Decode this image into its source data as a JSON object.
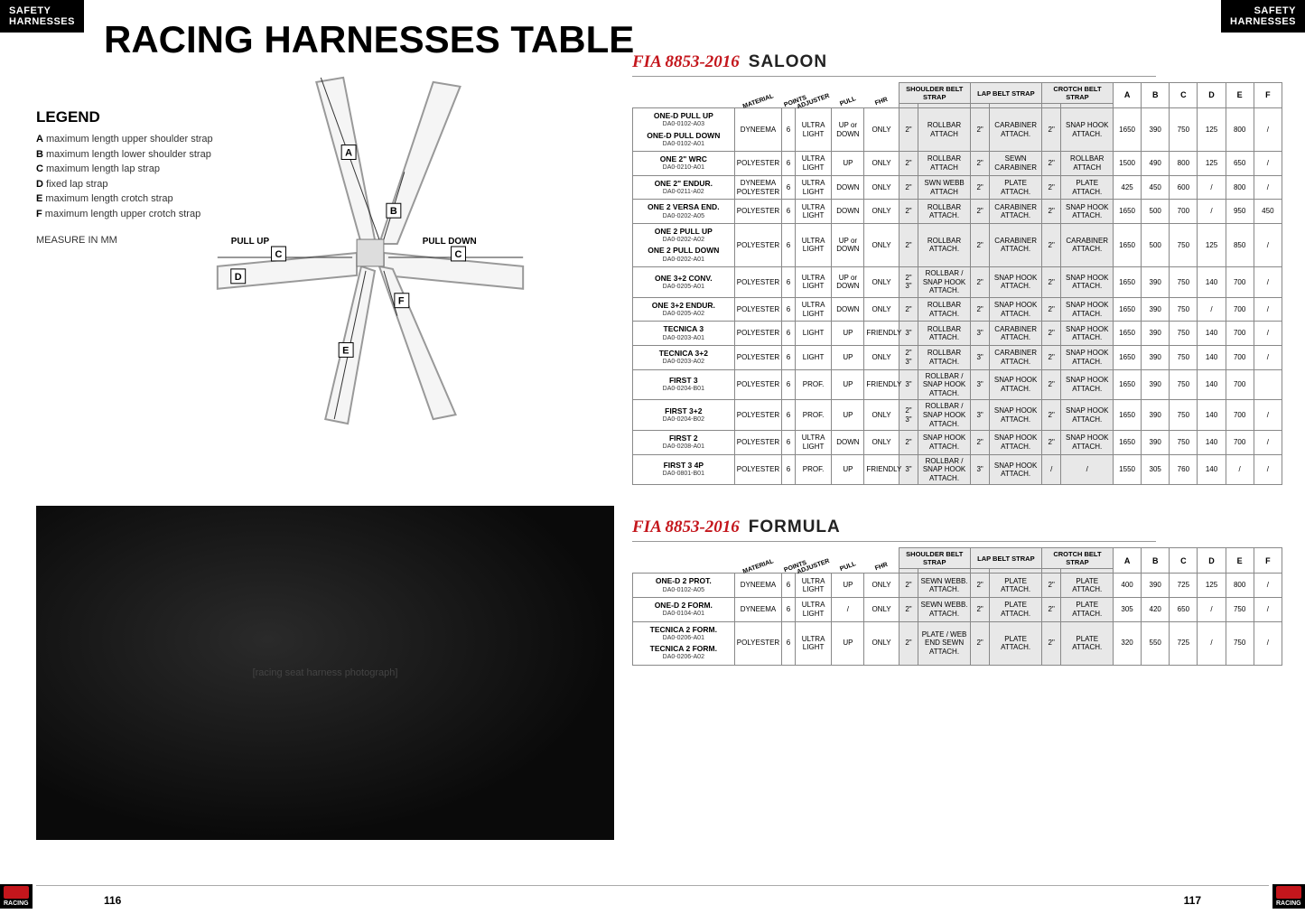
{
  "header_tag": "SAFETY\nHARNESSES",
  "page_title": "RACING HARNESSES TABLE",
  "legend": {
    "title": "LEGEND",
    "items": [
      {
        "l": "A",
        "t": "maximum length upper shoulder strap"
      },
      {
        "l": "B",
        "t": "maximum length lower shoulder strap"
      },
      {
        "l": "C",
        "t": "maximum length lap strap"
      },
      {
        "l": "D",
        "t": "fixed lap strap"
      },
      {
        "l": "E",
        "t": "maximum length crotch strap"
      },
      {
        "l": "F",
        "t": "maximum length upper crotch strap"
      }
    ],
    "note": "MEASURE IN MM"
  },
  "diagram": {
    "pull_up": "PULL UP",
    "pull_down": "PULL DOWN",
    "labels": [
      "A",
      "B",
      "C",
      "D",
      "E",
      "F"
    ]
  },
  "fia_prefix": "FIA 8853-2016",
  "saloon_title": "SALOON",
  "formula_title": "FORMULA",
  "table_headers": {
    "material": "MATERIAL",
    "points": "POINTS",
    "adjuster": "ADJUSTER",
    "pull": "PULL",
    "fhr": "FHR",
    "shoulder": "SHOULDER BELT STRAP",
    "lap": "LAP BELT STRAP",
    "crotch": "CROTCH BELT STRAP",
    "dims": [
      "A",
      "B",
      "C",
      "D",
      "E",
      "F"
    ]
  },
  "saloon_rows": [
    {
      "name": "ONE-D PULL UP",
      "code": "DA0-0102-A03",
      "name2": "ONE-D PULL DOWN",
      "code2": "DA0-0102-A01",
      "mat": "DYNEEMA",
      "pts": "6",
      "adj": "ULTRA LIGHT",
      "pull": "UP or DOWN",
      "fhr": "ONLY",
      "ssz": "2\"",
      "sat": "ROLLBAR ATTACH",
      "lsz": "2\"",
      "lat": "CARABINER ATTACH.",
      "csz": "2\"",
      "cat": "SNAP HOOK ATTACH.",
      "a": "1650",
      "b": "390",
      "c": "750",
      "d": "125",
      "e": "800",
      "f": "/"
    },
    {
      "name": "ONE 2\" WRC",
      "code": "DA0-0210-A01",
      "mat": "POLYESTER",
      "pts": "6",
      "adj": "ULTRA LIGHT",
      "pull": "UP",
      "fhr": "ONLY",
      "ssz": "2\"",
      "sat": "ROLLBAR ATTACH",
      "lsz": "2\"",
      "lat": "SEWN CARABINER",
      "csz": "2\"",
      "cat": "ROLLBAR ATTACH",
      "a": "1500",
      "b": "490",
      "c": "800",
      "d": "125",
      "e": "650",
      "f": "/"
    },
    {
      "name": "ONE 2\" ENDUR.",
      "code": "DA0-0211-A02",
      "mat": "DYNEEMA POLYESTER",
      "pts": "6",
      "adj": "ULTRA LIGHT",
      "pull": "DOWN",
      "fhr": "ONLY",
      "ssz": "2\"",
      "sat": "SWN WEBB ATTACH",
      "lsz": "2\"",
      "lat": "PLATE ATTACH.",
      "csz": "2\"",
      "cat": "PLATE ATTACH.",
      "a": "425",
      "b": "450",
      "c": "600",
      "d": "/",
      "e": "800",
      "f": "/"
    },
    {
      "name": "ONE 2 VERSA END.",
      "code": "DA0-0202-A05",
      "mat": "POLYESTER",
      "pts": "6",
      "adj": "ULTRA LIGHT",
      "pull": "DOWN",
      "fhr": "ONLY",
      "ssz": "2\"",
      "sat": "ROLLBAR ATTACH.",
      "lsz": "2\"",
      "lat": "CARABINER ATTACH.",
      "csz": "2\"",
      "cat": "SNAP HOOK ATTACH.",
      "a": "1650",
      "b": "500",
      "c": "700",
      "d": "/",
      "e": "950",
      "f": "450"
    },
    {
      "name": "ONE 2 PULL UP",
      "code": "DA0-0202-A02",
      "name2": "ONE 2 PULL DOWN",
      "code2": "DA0-0202-A01",
      "mat": "POLYESTER",
      "pts": "6",
      "adj": "ULTRA LIGHT",
      "pull": "UP or DOWN",
      "fhr": "ONLY",
      "ssz": "2\"",
      "sat": "ROLLBAR ATTACH.",
      "lsz": "2\"",
      "lat": "CARABINER ATTACH.",
      "csz": "2\"",
      "cat": "CARABINER ATTACH.",
      "a": "1650",
      "b": "500",
      "c": "750",
      "d": "125",
      "e": "850",
      "f": "/"
    },
    {
      "name": "ONE 3+2 CONV.",
      "code": "DA0-0205-A01",
      "mat": "POLYESTER",
      "pts": "6",
      "adj": "ULTRA LIGHT",
      "pull": "UP or DOWN",
      "fhr": "ONLY",
      "ssz": "2\" 3\"",
      "sat": "ROLLBAR / SNAP HOOK ATTACH.",
      "lsz": "2\"",
      "lat": "SNAP HOOK ATTACH.",
      "csz": "2\"",
      "cat": "SNAP HOOK ATTACH.",
      "a": "1650",
      "b": "390",
      "c": "750",
      "d": "140",
      "e": "700",
      "f": "/"
    },
    {
      "name": "ONE 3+2 ENDUR.",
      "code": "DA0-0205-A02",
      "mat": "POLYESTER",
      "pts": "6",
      "adj": "ULTRA LIGHT",
      "pull": "DOWN",
      "fhr": "ONLY",
      "ssz": "2\"",
      "sat": "ROLLBAR ATTACH.",
      "lsz": "2\"",
      "lat": "SNAP HOOK ATTACH.",
      "csz": "2\"",
      "cat": "SNAP HOOK ATTACH.",
      "a": "1650",
      "b": "390",
      "c": "750",
      "d": "/",
      "e": "700",
      "f": "/"
    },
    {
      "name": "TECNICA 3",
      "code": "DA0-0203-A01",
      "mat": "POLYESTER",
      "pts": "6",
      "adj": "LIGHT",
      "pull": "UP",
      "fhr": "FRIENDLY",
      "ssz": "3\"",
      "sat": "ROLLBAR ATTACH.",
      "lsz": "3\"",
      "lat": "CARABINER ATTACH.",
      "csz": "2\"",
      "cat": "SNAP HOOK ATTACH.",
      "a": "1650",
      "b": "390",
      "c": "750",
      "d": "140",
      "e": "700",
      "f": "/"
    },
    {
      "name": "TECNICA 3+2",
      "code": "DA0-0203-A02",
      "mat": "POLYESTER",
      "pts": "6",
      "adj": "LIGHT",
      "pull": "UP",
      "fhr": "ONLY",
      "ssz": "2\" 3\"",
      "sat": "ROLLBAR ATTACH.",
      "lsz": "3\"",
      "lat": "CARABINER ATTACH.",
      "csz": "2\"",
      "cat": "SNAP HOOK ATTACH.",
      "a": "1650",
      "b": "390",
      "c": "750",
      "d": "140",
      "e": "700",
      "f": "/"
    },
    {
      "name": "FIRST 3",
      "code": "DA0-0204-B01",
      "mat": "POLYESTER",
      "pts": "6",
      "adj": "PROF.",
      "pull": "UP",
      "fhr": "FRIENDLY",
      "ssz": "3\"",
      "sat": "ROLLBAR / SNAP HOOK ATTACH.",
      "lsz": "3\"",
      "lat": "SNAP HOOK ATTACH.",
      "csz": "2\"",
      "cat": "SNAP HOOK ATTACH.",
      "a": "1650",
      "b": "390",
      "c": "750",
      "d": "140",
      "e": "700",
      "f": ""
    },
    {
      "name": "FIRST 3+2",
      "code": "DA0-0204-B02",
      "mat": "POLYESTER",
      "pts": "6",
      "adj": "PROF.",
      "pull": "UP",
      "fhr": "ONLY",
      "ssz": "2\" 3\"",
      "sat": "ROLLBAR / SNAP HOOK ATTACH.",
      "lsz": "3\"",
      "lat": "SNAP HOOK ATTACH.",
      "csz": "2\"",
      "cat": "SNAP HOOK ATTACH.",
      "a": "1650",
      "b": "390",
      "c": "750",
      "d": "140",
      "e": "700",
      "f": "/"
    },
    {
      "name": "FIRST 2",
      "code": "DA0-0208-A01",
      "mat": "POLYESTER",
      "pts": "6",
      "adj": "ULTRA LIGHT",
      "pull": "DOWN",
      "fhr": "ONLY",
      "ssz": "2\"",
      "sat": "SNAP HOOK ATTACH.",
      "lsz": "2\"",
      "lat": "SNAP HOOK ATTACH.",
      "csz": "2\"",
      "cat": "SNAP HOOK ATTACH.",
      "a": "1650",
      "b": "390",
      "c": "750",
      "d": "140",
      "e": "700",
      "f": "/"
    },
    {
      "name": "FIRST 3 4P",
      "code": "DA0-0801-B01",
      "mat": "POLYESTER",
      "pts": "6",
      "adj": "PROF.",
      "pull": "UP",
      "fhr": "FRIENDLY",
      "ssz": "3\"",
      "sat": "ROLLBAR / SNAP HOOK ATTACH.",
      "lsz": "3\"",
      "lat": "SNAP HOOK ATTACH.",
      "csz": "/",
      "cat": "/",
      "a": "1550",
      "b": "305",
      "c": "760",
      "d": "140",
      "e": "/",
      "f": "/"
    }
  ],
  "formula_rows": [
    {
      "name": "ONE-D 2 PROT.",
      "code": "DA0-0102-A05",
      "mat": "DYNEEMA",
      "pts": "6",
      "adj": "ULTRA LIGHT",
      "pull": "UP",
      "fhr": "ONLY",
      "ssz": "2\"",
      "sat": "SEWN WEBB. ATTACH.",
      "lsz": "2\"",
      "lat": "PLATE ATTACH.",
      "csz": "2\"",
      "cat": "PLATE ATTACH.",
      "a": "400",
      "b": "390",
      "c": "725",
      "d": "125",
      "e": "800",
      "f": "/"
    },
    {
      "name": "ONE-D 2 FORM.",
      "code": "DA0-0104-A01",
      "mat": "DYNEEMA",
      "pts": "6",
      "adj": "ULTRA LIGHT",
      "pull": "/",
      "fhr": "ONLY",
      "ssz": "2\"",
      "sat": "SEWN WEBB. ATTACH.",
      "lsz": "2\"",
      "lat": "PLATE ATTACH.",
      "csz": "2\"",
      "cat": "PLATE ATTACH.",
      "a": "305",
      "b": "420",
      "c": "650",
      "d": "/",
      "e": "750",
      "f": "/"
    },
    {
      "name": "TECNICA 2 FORM.",
      "code": "DA0-0206-A01",
      "name2": "TECNICA 2 FORM.",
      "code2": "DA0-0206-A02",
      "mat": "POLYESTER",
      "pts": "6",
      "adj": "ULTRA LIGHT",
      "pull": "UP",
      "fhr": "ONLY",
      "ssz": "2\"",
      "sat": "PLATE / WEB END SEWN ATTACH.",
      "lsz": "2\"",
      "lat": "PLATE ATTACH.",
      "csz": "2\"",
      "cat": "PLATE ATTACH.",
      "a": "320",
      "b": "550",
      "c": "725",
      "d": "/",
      "e": "750",
      "f": "/"
    }
  ],
  "footer": {
    "racing": "RACING",
    "page_left": "116",
    "page_right": "117"
  },
  "colors": {
    "accent_red": "#c4161c",
    "shade_bg": "#e8e8e8",
    "border": "#888888"
  }
}
